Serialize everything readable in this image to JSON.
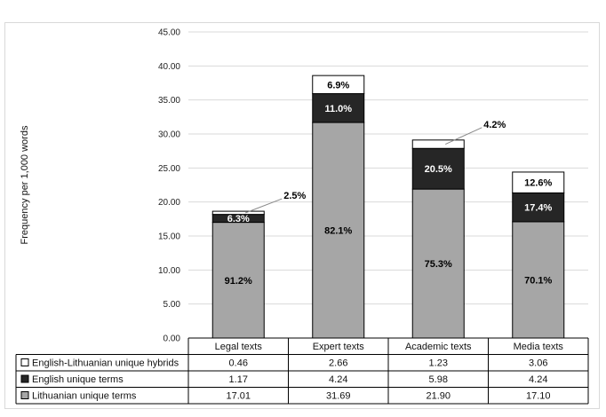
{
  "chart_data": {
    "type": "bar",
    "stacked": true,
    "ylabel": "Frequency per 1,000 words",
    "ylim": [
      0,
      45
    ],
    "yticks": [
      "0.00",
      "5.00",
      "10.00",
      "15.00",
      "20.00",
      "25.00",
      "30.00",
      "35.00",
      "40.00",
      "45.00"
    ],
    "categories": [
      "Legal texts",
      "Expert texts",
      "Academic texts",
      "Media texts"
    ],
    "series": [
      {
        "name": "Lithuanian unique terms",
        "color": "#a6a6a6",
        "values": [
          17.01,
          31.69,
          21.9,
          17.1
        ],
        "display": [
          "17.01",
          "31.69",
          "21.90",
          "17.10"
        ],
        "labels": [
          "91.2%",
          "82.1%",
          "75.3%",
          "70.1%"
        ],
        "label_color": "#000000"
      },
      {
        "name": "English unique terms",
        "color": "#262626",
        "values": [
          1.17,
          4.24,
          5.98,
          4.24
        ],
        "display": [
          "1.17",
          "4.24",
          "5.98",
          "4.24"
        ],
        "labels": [
          "6.3%",
          "11.0%",
          "20.5%",
          "17.4%"
        ],
        "label_color": "#ffffff"
      },
      {
        "name": "English-Lithuanian unique hybrids",
        "color": "#ffffff",
        "values": [
          0.46,
          2.66,
          1.23,
          3.06
        ],
        "display": [
          "0.46",
          "2.66",
          "1.23",
          "3.06"
        ],
        "labels": [
          "2.5%",
          "6.9%",
          "4.2%",
          "12.6%"
        ],
        "label_color": "#333333"
      }
    ],
    "callouts": [
      true,
      false,
      true,
      false
    ],
    "legend": "table-below"
  }
}
